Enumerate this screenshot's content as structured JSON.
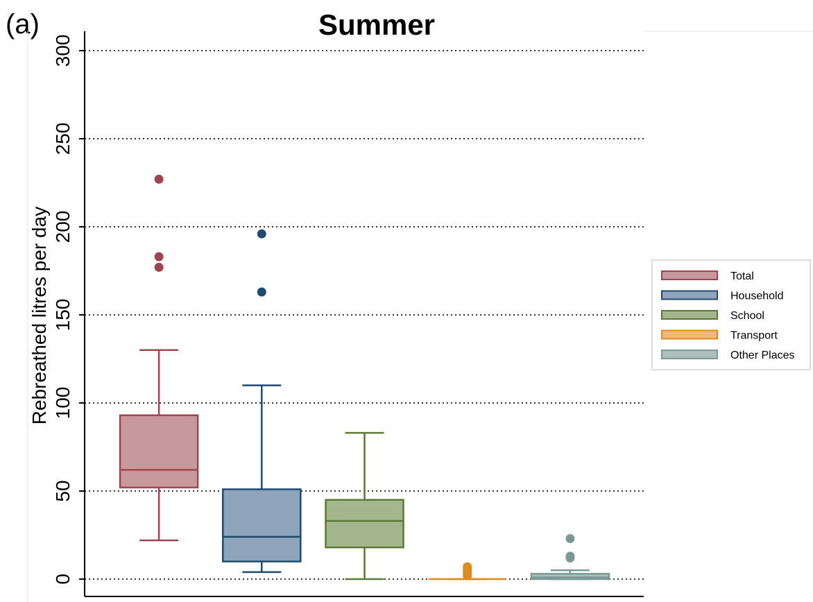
{
  "panel_label": "(a)",
  "chart_data": {
    "type": "box",
    "title": "Summer",
    "xlabel": "",
    "ylabel": "Rebreathed litres per day",
    "ylim": [
      0,
      300
    ],
    "yticks": [
      0,
      50,
      100,
      150,
      200,
      250,
      300
    ],
    "ytick_labels": [
      "0",
      "50",
      "100",
      "150",
      "200",
      "250",
      "300"
    ],
    "grid": "horizontal dotted",
    "legend_position": "right",
    "series": [
      {
        "name": "Total",
        "fill": "#c8999c",
        "stroke": "#a14450",
        "whisker_low": 22,
        "q1": 52,
        "median": 62,
        "q3": 93,
        "whisker_high": 130,
        "outliers": [
          227,
          183,
          177
        ]
      },
      {
        "name": "Household",
        "fill": "#8ea4bb",
        "stroke": "#1f4b73",
        "whisker_low": 4,
        "q1": 10,
        "median": 24,
        "q3": 51,
        "whisker_high": 110,
        "outliers": [
          196,
          163
        ]
      },
      {
        "name": "School",
        "fill": "#a4b68e",
        "stroke": "#5a7a35",
        "whisker_low": 0,
        "q1": 18,
        "median": 33,
        "q3": 45,
        "whisker_high": 83,
        "outliers": []
      },
      {
        "name": "Transport",
        "fill": "#f0b877",
        "stroke": "#e08a1e",
        "whisker_low": 0,
        "q1": 0,
        "median": 0,
        "q3": 0,
        "whisker_high": 0,
        "outliers": [
          2,
          3,
          4,
          5,
          6,
          7
        ]
      },
      {
        "name": "Other Places",
        "fill": "#aec0bc",
        "stroke": "#7a9894",
        "whisker_low": 0,
        "q1": 0,
        "median": 1,
        "q3": 3,
        "whisker_high": 5,
        "outliers": [
          23,
          13,
          12
        ]
      }
    ]
  }
}
